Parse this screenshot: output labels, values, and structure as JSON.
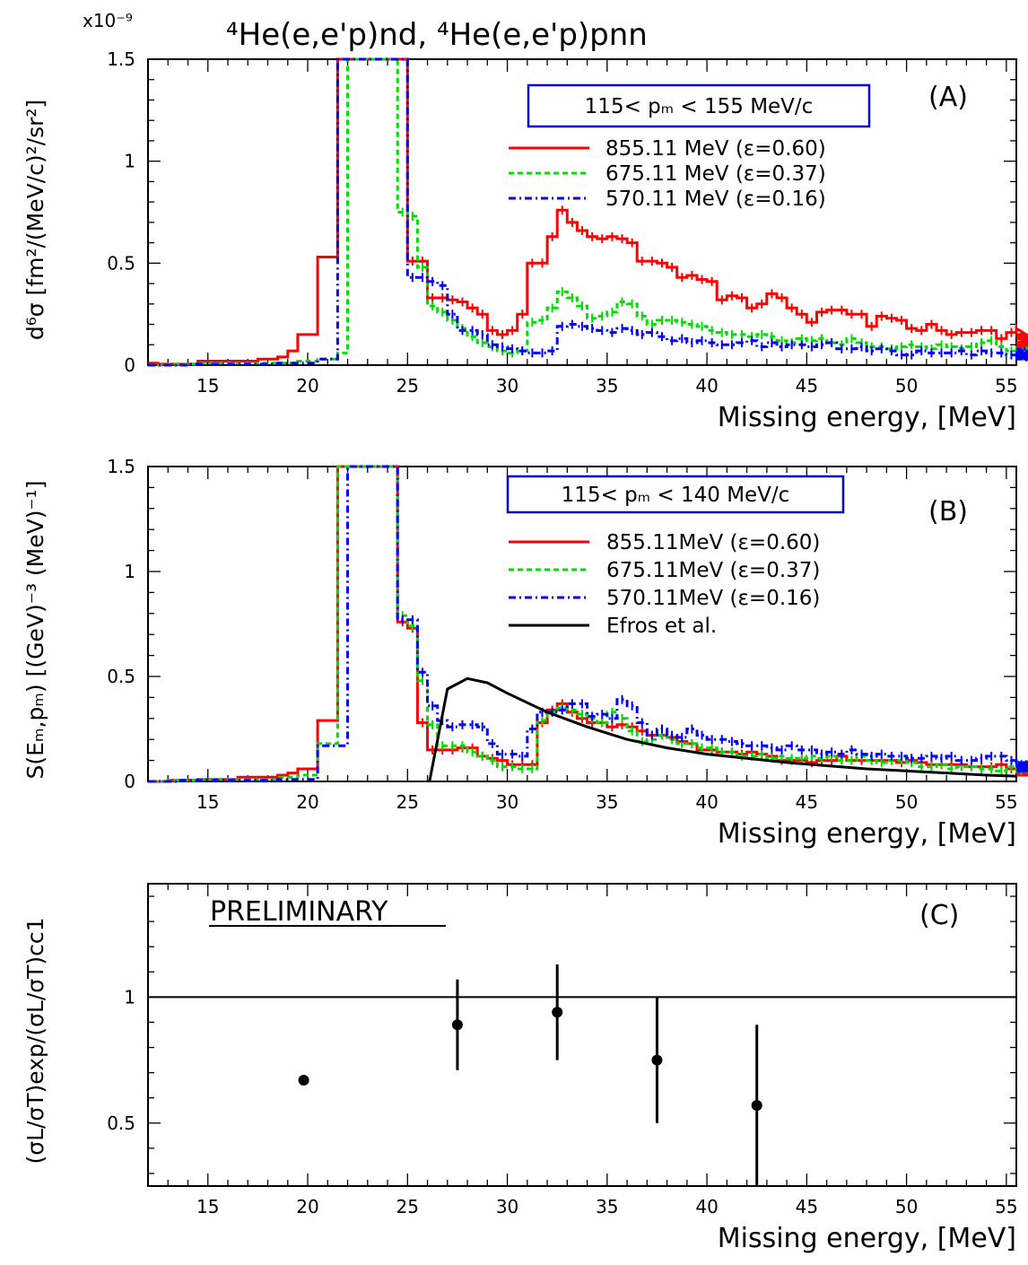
{
  "title": "⁴He(e,e'p)nd, ⁴He(e,e'p)pnn",
  "exponent_label": "x10⁻⁹",
  "colors": {
    "e855": "#ff0000",
    "e675": "#00dd00",
    "e570": "#0000ff",
    "theory": "#000000",
    "box": "#0000cc"
  },
  "chart_data": [
    {
      "type": "line",
      "panel_label": "(A)",
      "range_label": "115< pₘ < 155 MeV/c",
      "xlabel": "Missing energy, [MeV]",
      "ylabel": "d⁶σ [fm²/(MeV/c)²/sr²]",
      "xlim": [
        12,
        55.5
      ],
      "ylim": [
        0,
        1.5
      ],
      "xticks": [
        15,
        20,
        25,
        30,
        35,
        40,
        45,
        50,
        55
      ],
      "yticks": [
        0,
        0.5,
        1,
        1.5
      ],
      "ytick_labels": [
        "0",
        "0.5",
        "1",
        "1.5"
      ],
      "bin_start": 12,
      "bin_width": 0.5,
      "series": [
        {
          "name": "855.11 MeV (ε=0.60)",
          "key": "e855",
          "style": "solid",
          "values": [
            0.01,
            0.005,
            0.005,
            0.005,
            0.005,
            0.02,
            0.02,
            0.02,
            0.02,
            0.02,
            0.02,
            0.03,
            0.03,
            0.04,
            0.07,
            0.15,
            0.15,
            0.53,
            0.53,
            1.5,
            1.5,
            1.5,
            1.5,
            1.5,
            1.5,
            1.5,
            0.51,
            0.51,
            0.33,
            0.33,
            0.32,
            0.31,
            0.28,
            0.25,
            0.17,
            0.15,
            0.17,
            0.25,
            0.5,
            0.5,
            0.63,
            0.76,
            0.7,
            0.66,
            0.63,
            0.62,
            0.63,
            0.62,
            0.6,
            0.51,
            0.51,
            0.5,
            0.48,
            0.43,
            0.44,
            0.42,
            0.41,
            0.32,
            0.34,
            0.33,
            0.28,
            0.3,
            0.35,
            0.33,
            0.28,
            0.25,
            0.21,
            0.26,
            0.27,
            0.27,
            0.25,
            0.25,
            0.19,
            0.24,
            0.23,
            0.22,
            0.18,
            0.17,
            0.2,
            0.17,
            0.15,
            0.16,
            0.16,
            0.17,
            0.17,
            0.13,
            0.16,
            0.18,
            0.15,
            0.11,
            0.14,
            0.13,
            0.11,
            0.1,
            0.09,
            0.08,
            0.09,
            0.08,
            0.1,
            0.08,
            0.07,
            0.07,
            0.07,
            0.06,
            0.09,
            0.11,
            0.08,
            0.07,
            0.06,
            0.07,
            0.08,
            0.08,
            0.07,
            0.06,
            0.05,
            0.06,
            0.05
          ]
        },
        {
          "name": "675.11 MeV (ε=0.37)",
          "key": "e675",
          "style": "dashed",
          "values": [
            0.0,
            0.0,
            0.005,
            0.005,
            0.005,
            0.01,
            0.01,
            0.01,
            0.01,
            0.01,
            0.01,
            0.01,
            0.01,
            0.01,
            0.01,
            0.02,
            0.02,
            0.03,
            0.03,
            0.06,
            1.5,
            1.5,
            1.5,
            1.5,
            1.5,
            0.75,
            0.73,
            0.48,
            0.29,
            0.26,
            0.22,
            0.18,
            0.14,
            0.11,
            0.09,
            0.07,
            0.06,
            0.07,
            0.21,
            0.22,
            0.28,
            0.36,
            0.33,
            0.29,
            0.23,
            0.24,
            0.26,
            0.31,
            0.3,
            0.24,
            0.2,
            0.22,
            0.22,
            0.21,
            0.2,
            0.19,
            0.17,
            0.16,
            0.15,
            0.15,
            0.14,
            0.15,
            0.14,
            0.12,
            0.11,
            0.13,
            0.12,
            0.13,
            0.11,
            0.1,
            0.13,
            0.11,
            0.09,
            0.09,
            0.08,
            0.09,
            0.1,
            0.09,
            0.08,
            0.1,
            0.09,
            0.08,
            0.09,
            0.11,
            0.12,
            0.09,
            0.07,
            0.07,
            0.06,
            0.07,
            0.05,
            0.06,
            0.05,
            0.06,
            0.05,
            0.06,
            0.07,
            0.06,
            0.05,
            0.06,
            0.06,
            0.08,
            0.07,
            0.06,
            0.06,
            0.06,
            0.05,
            0.05,
            0.05,
            0.04,
            0.05,
            0.04,
            0.04,
            0.04,
            0.05,
            0.06,
            0.05
          ]
        },
        {
          "name": "570.11 MeV (ε=0.16)",
          "key": "e570",
          "style": "dashdot",
          "values": [
            0.0,
            0.0,
            0.0,
            0.0,
            0.005,
            0.005,
            0.005,
            0.005,
            0.005,
            0.005,
            0.005,
            0.005,
            0.005,
            0.01,
            0.01,
            0.01,
            0.01,
            0.03,
            0.03,
            1.5,
            1.5,
            1.5,
            1.5,
            1.5,
            1.5,
            1.5,
            0.43,
            0.43,
            0.41,
            0.39,
            0.25,
            0.17,
            0.17,
            0.15,
            0.1,
            0.09,
            0.08,
            0.07,
            0.06,
            0.06,
            0.07,
            0.19,
            0.2,
            0.19,
            0.18,
            0.17,
            0.16,
            0.18,
            0.17,
            0.15,
            0.16,
            0.14,
            0.12,
            0.13,
            0.11,
            0.12,
            0.11,
            0.1,
            0.1,
            0.11,
            0.12,
            0.09,
            0.11,
            0.09,
            0.1,
            0.1,
            0.09,
            0.1,
            0.11,
            0.08,
            0.08,
            0.09,
            0.07,
            0.08,
            0.07,
            0.05,
            0.05,
            0.07,
            0.06,
            0.06,
            0.06,
            0.07,
            0.05,
            0.07,
            0.06,
            0.06,
            0.05,
            0.05,
            0.06,
            0.04,
            0.05,
            0.05,
            0.06,
            0.05,
            0.05,
            0.04,
            0.05,
            0.05,
            0.04,
            0.05,
            0.06,
            0.03,
            0.06,
            0.05,
            0.06,
            0.05,
            0.07,
            0.06,
            0.03,
            0.08,
            0.04,
            0.07,
            0.06,
            0.05,
            0.06,
            0.06,
            0.05
          ]
        }
      ]
    },
    {
      "type": "line",
      "panel_label": "(B)",
      "range_label": "115< pₘ < 140 MeV/c",
      "xlabel": "Missing energy, [MeV]",
      "ylabel": "S(Eₘ,pₘ) [(GeV)⁻³ (MeV)⁻¹]",
      "xlim": [
        12,
        55.5
      ],
      "ylim": [
        0,
        1.5
      ],
      "xticks": [
        15,
        20,
        25,
        30,
        35,
        40,
        45,
        50,
        55
      ],
      "yticks": [
        0,
        0.5,
        1,
        1.5
      ],
      "ytick_labels": [
        "0",
        "0.5",
        "1",
        "1.5"
      ],
      "bin_start": 12,
      "bin_width": 0.5,
      "series": [
        {
          "name": "855.11MeV (ε=0.60)",
          "key": "e855",
          "style": "solid",
          "values": [
            0.0,
            0.0,
            0.005,
            0.005,
            0.005,
            0.01,
            0.01,
            0.01,
            0.01,
            0.02,
            0.02,
            0.02,
            0.02,
            0.03,
            0.04,
            0.06,
            0.06,
            0.29,
            0.29,
            1.5,
            1.5,
            1.5,
            1.5,
            1.5,
            1.5,
            0.76,
            0.73,
            0.28,
            0.15,
            0.15,
            0.15,
            0.16,
            0.16,
            0.12,
            0.11,
            0.1,
            0.08,
            0.08,
            0.08,
            0.28,
            0.34,
            0.37,
            0.33,
            0.3,
            0.28,
            0.28,
            0.26,
            0.27,
            0.26,
            0.24,
            0.22,
            0.22,
            0.21,
            0.19,
            0.18,
            0.15,
            0.15,
            0.14,
            0.14,
            0.13,
            0.14,
            0.13,
            0.12,
            0.1,
            0.1,
            0.1,
            0.09,
            0.1,
            0.1,
            0.12,
            0.1,
            0.1,
            0.1,
            0.1,
            0.1,
            0.09,
            0.1,
            0.09,
            0.08,
            0.08,
            0.08,
            0.08,
            0.07,
            0.07,
            0.07,
            0.08,
            0.06,
            0.06,
            0.06,
            0.07,
            0.06,
            0.06,
            0.06,
            0.06,
            0.05,
            0.05,
            0.05,
            0.04,
            0.04,
            0.04,
            0.04,
            0.03,
            0.04,
            0.04,
            0.05,
            0.04,
            0.03,
            0.03,
            0.04,
            0.04,
            0.03,
            0.04,
            0.03,
            0.04,
            0.04,
            0.04,
            0.04
          ]
        },
        {
          "name": "675.11MeV (ε=0.37)",
          "key": "e675",
          "style": "dashed",
          "values": [
            0.0,
            0.0,
            0.005,
            0.005,
            0.005,
            0.01,
            0.01,
            0.01,
            0.01,
            0.01,
            0.01,
            0.01,
            0.01,
            0.02,
            0.02,
            0.03,
            0.03,
            0.18,
            0.18,
            1.5,
            1.5,
            1.5,
            1.5,
            1.5,
            1.5,
            0.79,
            0.74,
            0.48,
            0.27,
            0.17,
            0.17,
            0.17,
            0.14,
            0.12,
            0.1,
            0.07,
            0.07,
            0.06,
            0.06,
            0.29,
            0.33,
            0.35,
            0.34,
            0.32,
            0.3,
            0.28,
            0.33,
            0.3,
            0.24,
            0.19,
            0.2,
            0.22,
            0.2,
            0.18,
            0.18,
            0.16,
            0.16,
            0.14,
            0.14,
            0.12,
            0.12,
            0.13,
            0.11,
            0.12,
            0.11,
            0.11,
            0.12,
            0.11,
            0.12,
            0.1,
            0.1,
            0.12,
            0.1,
            0.09,
            0.1,
            0.1,
            0.09,
            0.07,
            0.07,
            0.08,
            0.06,
            0.07,
            0.07,
            0.06,
            0.06,
            0.05,
            0.07,
            0.06,
            0.05,
            0.06,
            0.05,
            0.06,
            0.06,
            0.05,
            0.07,
            0.07,
            0.06,
            0.06,
            0.06,
            0.05,
            0.09,
            0.09,
            0.06,
            0.05,
            0.05,
            0.06,
            0.06,
            0.05,
            0.05,
            0.05,
            0.05,
            0.06,
            0.05,
            0.05,
            0.05,
            0.05,
            0.05
          ]
        },
        {
          "name": "570.11MeV (ε=0.16)",
          "key": "e570",
          "style": "dashdot",
          "values": [
            0.0,
            0.0,
            0.0,
            0.005,
            0.005,
            0.005,
            0.005,
            0.005,
            0.005,
            0.005,
            0.005,
            0.005,
            0.005,
            0.01,
            0.01,
            0.01,
            0.01,
            0.17,
            0.17,
            0.17,
            1.5,
            1.5,
            1.5,
            1.5,
            1.5,
            0.77,
            0.77,
            0.52,
            0.36,
            0.29,
            0.26,
            0.27,
            0.27,
            0.26,
            0.18,
            0.13,
            0.13,
            0.12,
            0.25,
            0.33,
            0.33,
            0.34,
            0.37,
            0.37,
            0.31,
            0.32,
            0.3,
            0.39,
            0.36,
            0.28,
            0.22,
            0.25,
            0.22,
            0.21,
            0.25,
            0.22,
            0.2,
            0.2,
            0.19,
            0.18,
            0.17,
            0.17,
            0.16,
            0.15,
            0.17,
            0.15,
            0.15,
            0.13,
            0.14,
            0.13,
            0.15,
            0.13,
            0.12,
            0.13,
            0.12,
            0.12,
            0.11,
            0.11,
            0.12,
            0.11,
            0.12,
            0.1,
            0.1,
            0.11,
            0.12,
            0.12,
            0.1,
            0.09,
            0.08,
            0.08,
            0.09,
            0.07,
            0.08,
            0.08,
            0.07,
            0.08,
            0.07,
            0.08,
            0.07,
            0.05,
            0.05,
            0.07,
            0.07,
            0.06,
            0.07,
            0.08,
            0.07,
            0.07,
            0.06,
            0.05,
            0.07,
            0.08,
            0.06,
            0.06,
            0.06,
            0.06,
            0.06
          ]
        },
        {
          "name": "Efros et al.",
          "key": "theory",
          "style": "solid",
          "x": [
            26.1,
            27,
            28,
            29,
            30,
            32,
            34,
            36,
            38,
            40,
            42,
            44,
            46,
            48,
            50,
            52,
            54,
            55.5
          ],
          "y": [
            0,
            0.44,
            0.49,
            0.47,
            0.42,
            0.33,
            0.26,
            0.2,
            0.16,
            0.13,
            0.11,
            0.09,
            0.075,
            0.06,
            0.05,
            0.04,
            0.03,
            0.025
          ]
        }
      ]
    },
    {
      "type": "scatter",
      "panel_label": "(C)",
      "annotation": "PRELIMINARY",
      "xlabel": "Missing energy, [MeV]",
      "ylabel": "(σL/σT)exp/(σL/σT)cc1",
      "xlim": [
        12,
        55.5
      ],
      "ylim": [
        0.25,
        1.45
      ],
      "xticks": [
        15,
        20,
        25,
        30,
        35,
        40,
        45,
        50,
        55
      ],
      "yticks": [
        0.5,
        1
      ],
      "ytick_labels": [
        "0.5",
        "1"
      ],
      "reference_line": 1.0,
      "points": [
        {
          "x": 19.8,
          "y": 0.67,
          "err": 0
        },
        {
          "x": 27.5,
          "y": 0.89,
          "err": 0.18
        },
        {
          "x": 32.5,
          "y": 0.94,
          "err": 0.19
        },
        {
          "x": 37.5,
          "y": 0.75,
          "err": 0.25
        },
        {
          "x": 42.5,
          "y": 0.57,
          "err": 0.32
        }
      ]
    }
  ]
}
